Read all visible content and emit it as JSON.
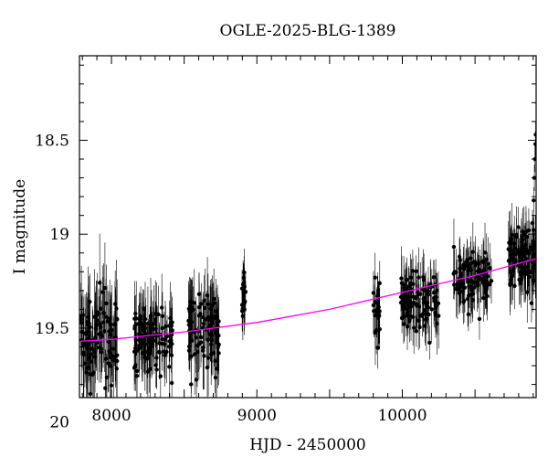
{
  "chart_data": {
    "type": "scatter",
    "title": "OGLE-2025-BLG-1389",
    "xlabel": "HJD - 2450000",
    "ylabel": "I magnitude",
    "xlim": [
      7780,
      10920
    ],
    "ylim": [
      19.87,
      18.05
    ],
    "y_inverted": true,
    "grid": false,
    "x_ticks": [
      {
        "value": 8000,
        "label": "8000"
      },
      {
        "value": 9000,
        "label": "9000"
      },
      {
        "value": 10000,
        "label": "10000"
      }
    ],
    "y_ticks": [
      {
        "value": 18.5,
        "label": "18.5"
      },
      {
        "value": 19,
        "label": "19"
      },
      {
        "value": 19.5,
        "label": "19.5"
      },
      {
        "value": 20,
        "label": "20"
      }
    ],
    "series": [
      {
        "style": "points-with-errorbars",
        "color": "#000000",
        "seasons": [
          {
            "x_range": [
              7790,
              8040
            ],
            "center_mag": 19.57,
            "scatter": 0.22,
            "err": 0.22,
            "n": 110
          },
          {
            "x_range": [
              8150,
              8420
            ],
            "center_mag": 19.55,
            "scatter": 0.16,
            "err": 0.17,
            "n": 110
          },
          {
            "x_range": [
              8530,
              8740
            ],
            "center_mag": 19.51,
            "scatter": 0.18,
            "err": 0.18,
            "n": 100
          },
          {
            "x_range": [
              8895,
              8925
            ],
            "center_mag": 19.32,
            "scatter": 0.1,
            "err": 0.12,
            "n": 22
          },
          {
            "x_range": [
              9800,
              9850
            ],
            "center_mag": 19.42,
            "scatter": 0.15,
            "err": 0.15,
            "n": 24
          },
          {
            "x_range": [
              9990,
              10250
            ],
            "center_mag": 19.36,
            "scatter": 0.15,
            "err": 0.14,
            "n": 110
          },
          {
            "x_range": [
              10350,
              10620
            ],
            "center_mag": 19.24,
            "scatter": 0.13,
            "err": 0.13,
            "n": 110
          },
          {
            "x_range": [
              10730,
              10920
            ],
            "center_mag": 19.13,
            "scatter": 0.14,
            "err": 0.14,
            "n": 110
          }
        ],
        "rise_points": [
          {
            "x": 10895,
            "y": 18.94
          },
          {
            "x": 10903,
            "y": 18.82
          },
          {
            "x": 10908,
            "y": 18.7
          },
          {
            "x": 10912,
            "y": 18.6
          },
          {
            "x": 10915,
            "y": 18.52
          },
          {
            "x": 10917,
            "y": 18.47
          }
        ]
      },
      {
        "style": "model-curve",
        "color": "#ff00ff",
        "x": [
          7780,
          8000,
          8500,
          9000,
          9500,
          10000,
          10500,
          10920
        ],
        "y": [
          19.57,
          19.56,
          19.52,
          19.47,
          19.4,
          19.31,
          19.22,
          19.13
        ]
      }
    ]
  }
}
